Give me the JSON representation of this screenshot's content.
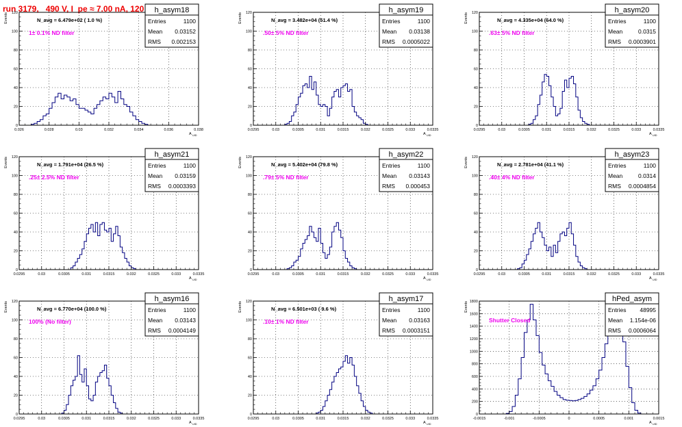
{
  "run_title": "run 3179,   490 V, I_pe ≈ 7.00 nA, 120 Hz",
  "colors": {
    "hist": "#000080",
    "magenta": "#ee00ee",
    "title_red": "#ee0000",
    "grid": "#000000"
  },
  "y_axis_label": "Events",
  "stat_labels": [
    "Entries",
    "Mean",
    "RMS"
  ],
  "chart_data": [
    {
      "type": "histogram",
      "name": "h_asym18",
      "navg": "N_avg = 6.479e+02 ( 1.0 %)",
      "filter": "1± 0.1% ND filter",
      "stats": {
        "entries": "1100",
        "mean": "0.03152",
        "rms": "0.002153"
      },
      "xlabel": "A",
      "xlabel_sub": "UID",
      "xlim": [
        0.026,
        0.038
      ],
      "ylim": [
        0,
        120
      ],
      "xticks": [
        0.026,
        0.028,
        0.03,
        0.032,
        0.034,
        0.036,
        0.038
      ],
      "xticklabels": [
        "0.026",
        "0.028",
        "0.03",
        "0.032",
        "0.034",
        "0.036",
        "0.038"
      ],
      "yticks": [
        0,
        20,
        40,
        60,
        80,
        100,
        120
      ],
      "bin_lo": 0.0268,
      "bin_w": 0.0002,
      "counts": [
        1,
        2,
        4,
        6,
        10,
        12,
        18,
        24,
        30,
        34,
        28,
        32,
        30,
        26,
        28,
        22,
        18,
        18,
        16,
        14,
        12,
        18,
        22,
        26,
        30,
        28,
        34,
        30,
        24,
        36,
        28,
        22,
        20,
        14,
        10,
        6,
        4,
        2,
        1
      ]
    },
    {
      "type": "histogram",
      "name": "h_asym19",
      "navg": "N_avg = 3.482e+04 (51.4 %)",
      "filter": ".50± 5% ND filter",
      "stats": {
        "entries": "1100",
        "mean": "0.03138",
        "rms": "0.0005022"
      },
      "xlabel": "A",
      "xlabel_sub": "UID",
      "xlim": [
        0.0295,
        0.0335
      ],
      "ylim": [
        0,
        120
      ],
      "xticks": [
        0.0295,
        0.03,
        0.0305,
        0.031,
        0.0315,
        0.032,
        0.0325,
        0.033,
        0.0335
      ],
      "xticklabels": [
        "0.0295",
        "0.03",
        "0.0305",
        "0.031",
        "0.0315",
        "0.032",
        "0.0325",
        "0.033",
        "0.0335"
      ],
      "yticks": [
        0,
        20,
        40,
        60,
        80,
        100,
        120
      ],
      "bin_lo": 0.0302,
      "bin_w": 5e-05,
      "counts": [
        1,
        2,
        4,
        10,
        14,
        22,
        30,
        34,
        42,
        44,
        40,
        52,
        38,
        46,
        32,
        22,
        20,
        22,
        20,
        10,
        18,
        30,
        36,
        38,
        30,
        40,
        42,
        44,
        36,
        38,
        20,
        14,
        10,
        8,
        6,
        2,
        1
      ]
    },
    {
      "type": "histogram",
      "name": "h_asym20",
      "navg": "N_avg = 4.335e+04 (64.0 %)",
      "filter": ".63± 5% ND filter",
      "stats": {
        "entries": "1100",
        "mean": "0.0315",
        "rms": "0.0003901"
      },
      "xlabel": "A",
      "xlabel_sub": "UID",
      "xlim": [
        0.0295,
        0.0335
      ],
      "ylim": [
        0,
        120
      ],
      "xticks": [
        0.0295,
        0.03,
        0.0305,
        0.031,
        0.0315,
        0.032,
        0.0325,
        0.033,
        0.0335
      ],
      "xticklabels": [
        "0.0295",
        "0.03",
        "0.0305",
        "0.031",
        "0.0315",
        "0.032",
        "0.0325",
        "0.033",
        "0.0335"
      ],
      "yticks": [
        0,
        20,
        40,
        60,
        80,
        100,
        120
      ],
      "bin_lo": 0.0306,
      "bin_w": 5e-05,
      "counts": [
        1,
        2,
        6,
        10,
        22,
        32,
        46,
        54,
        52,
        42,
        30,
        20,
        10,
        12,
        18,
        36,
        48,
        40,
        50,
        52,
        44,
        30,
        16,
        8,
        4,
        2,
        1
      ]
    },
    {
      "type": "histogram",
      "name": "h_asym21",
      "navg": "N_avg = 1.791e+04 (26.5 %)",
      "filter": ".25± 2.5% ND filter",
      "stats": {
        "entries": "1100",
        "mean": "0.03159",
        "rms": "0.0003393"
      },
      "xlabel": "A",
      "xlabel_sub": "UID",
      "xlim": [
        0.0295,
        0.0335
      ],
      "ylim": [
        0,
        120
      ],
      "xticks": [
        0.0295,
        0.03,
        0.0305,
        0.031,
        0.0315,
        0.032,
        0.0325,
        0.033,
        0.0335
      ],
      "xticklabels": [
        "0.0295",
        "0.03",
        "0.0305",
        "0.031",
        "0.0315",
        "0.032",
        "0.0325",
        "0.033",
        "0.0335"
      ],
      "yticks": [
        0,
        20,
        40,
        60,
        80,
        100,
        120
      ],
      "bin_lo": 0.03065,
      "bin_w": 5e-05,
      "counts": [
        2,
        4,
        8,
        12,
        16,
        22,
        30,
        38,
        44,
        48,
        40,
        50,
        36,
        48,
        50,
        42,
        40,
        44,
        30,
        38,
        46,
        36,
        24,
        18,
        12,
        8,
        4,
        2,
        1
      ]
    },
    {
      "type": "histogram",
      "name": "h_asym22",
      "navg": "N_avg = 5.402e+04 (79.8 %)",
      "filter": ".79± 5% ND filter",
      "stats": {
        "entries": "1100",
        "mean": "0.03143",
        "rms": "0.000453"
      },
      "xlabel": "A",
      "xlabel_sub": "UID",
      "xlim": [
        0.0295,
        0.0335
      ],
      "ylim": [
        0,
        120
      ],
      "xticks": [
        0.0295,
        0.03,
        0.0305,
        0.031,
        0.0315,
        0.032,
        0.0325,
        0.033,
        0.0335
      ],
      "xticklabels": [
        "0.0295",
        "0.03",
        "0.0305",
        "0.031",
        "0.0315",
        "0.032",
        "0.0325",
        "0.033",
        "0.0335"
      ],
      "yticks": [
        0,
        20,
        40,
        60,
        80,
        100,
        120
      ],
      "bin_lo": 0.03025,
      "bin_w": 5e-05,
      "counts": [
        1,
        2,
        4,
        8,
        10,
        14,
        22,
        28,
        32,
        36,
        46,
        40,
        34,
        30,
        44,
        28,
        18,
        12,
        16,
        24,
        40,
        46,
        50,
        42,
        34,
        20,
        12,
        8,
        4,
        2,
        1
      ]
    },
    {
      "type": "histogram",
      "name": "h_asym23",
      "navg": "N_avg = 2.781e+04 (41.1 %)",
      "filter": ".40± 4% ND filter",
      "stats": {
        "entries": "1100",
        "mean": "0.0314",
        "rms": "0.0004854"
      },
      "xlabel": "A",
      "xlabel_sub": "UID",
      "xlim": [
        0.0295,
        0.0335
      ],
      "ylim": [
        0,
        120
      ],
      "xticks": [
        0.0295,
        0.03,
        0.0305,
        0.031,
        0.0315,
        0.032,
        0.0325,
        0.033,
        0.0335
      ],
      "xticklabels": [
        "0.0295",
        "0.03",
        "0.0305",
        "0.031",
        "0.0315",
        "0.032",
        "0.0325",
        "0.033",
        "0.0335"
      ],
      "yticks": [
        0,
        20,
        40,
        60,
        80,
        100,
        120
      ],
      "bin_lo": 0.03035,
      "bin_w": 5e-05,
      "counts": [
        1,
        2,
        6,
        10,
        16,
        22,
        30,
        38,
        44,
        50,
        40,
        34,
        26,
        20,
        24,
        14,
        26,
        18,
        30,
        38,
        40,
        36,
        44,
        50,
        38,
        26,
        14,
        8,
        4,
        2,
        1
      ]
    },
    {
      "type": "histogram",
      "name": "h_asym16",
      "navg": "N_avg = 6.770e+04 (100.0 %)",
      "filter": "100% (No filter)",
      "stats": {
        "entries": "1100",
        "mean": "0.03143",
        "rms": "0.0004149"
      },
      "xlabel": "A",
      "xlabel_sub": "UID",
      "xlim": [
        0.0295,
        0.0335
      ],
      "ylim": [
        0,
        120
      ],
      "xticks": [
        0.0295,
        0.03,
        0.0305,
        0.031,
        0.0315,
        0.032,
        0.0325,
        0.033,
        0.0335
      ],
      "xticklabels": [
        "0.0295",
        "0.03",
        "0.0305",
        "0.031",
        "0.0315",
        "0.032",
        "0.0325",
        "0.033",
        "0.0335"
      ],
      "yticks": [
        0,
        20,
        40,
        60,
        80,
        100,
        120
      ],
      "bin_lo": 0.03045,
      "bin_w": 5e-05,
      "counts": [
        1,
        4,
        10,
        20,
        30,
        36,
        40,
        62,
        42,
        34,
        48,
        30,
        16,
        14,
        20,
        34,
        40,
        44,
        46,
        52,
        38,
        30,
        20,
        12,
        6,
        2,
        1
      ]
    },
    {
      "type": "histogram",
      "name": "h_asym17",
      "navg": "N_avg = 6.501e+03 ( 9.6 %)",
      "filter": ".10± 1% ND filter",
      "stats": {
        "entries": "1100",
        "mean": "0.03163",
        "rms": "0.0003151"
      },
      "xlabel": "A",
      "xlabel_sub": "UID",
      "xlim": [
        0.0295,
        0.0335
      ],
      "ylim": [
        0,
        120
      ],
      "xticks": [
        0.0295,
        0.03,
        0.0305,
        0.031,
        0.0315,
        0.032,
        0.0325,
        0.033,
        0.0335
      ],
      "xticklabels": [
        "0.0295",
        "0.03",
        "0.0305",
        "0.031",
        "0.0315",
        "0.032",
        "0.0325",
        "0.033",
        "0.0335"
      ],
      "yticks": [
        0,
        20,
        40,
        60,
        80,
        100,
        120
      ],
      "bin_lo": 0.0309,
      "bin_w": 5e-05,
      "counts": [
        1,
        2,
        4,
        8,
        14,
        20,
        26,
        34,
        40,
        44,
        48,
        50,
        56,
        62,
        54,
        60,
        52,
        40,
        30,
        22,
        14,
        8,
        4,
        2,
        1
      ]
    },
    {
      "type": "histogram",
      "name": "hPed_asym",
      "navg": "",
      "filter": "Shutter Closed",
      "stats": {
        "entries": "48995",
        "mean": "1.154e-06",
        "rms": "0.0006064"
      },
      "xlabel": "A",
      "xlabel_sub": "UID",
      "xlim": [
        -0.0015,
        0.0015
      ],
      "ylim": [
        0,
        1800
      ],
      "xticks": [
        -0.0015,
        -0.001,
        -0.0005,
        0,
        0.0005,
        0.001,
        0.0015
      ],
      "xticklabels": [
        "-0.0015",
        "-0.001",
        "-0.0005",
        "0",
        "0.0005",
        "0.001",
        "0.0015"
      ],
      "yticks": [
        0,
        200,
        400,
        600,
        800,
        1000,
        1200,
        1400,
        1600,
        1800
      ],
      "bin_lo": -0.00105,
      "bin_w": 5e-05,
      "counts": [
        10,
        40,
        120,
        300,
        560,
        900,
        1300,
        1500,
        1750,
        1500,
        1250,
        980,
        780,
        640,
        530,
        440,
        360,
        300,
        260,
        230,
        220,
        215,
        210,
        215,
        230,
        250,
        280,
        320,
        380,
        450,
        560,
        700,
        900,
        1120,
        1340,
        1550,
        1700,
        1740,
        1500,
        1150,
        760,
        420,
        180,
        60,
        15
      ]
    }
  ]
}
